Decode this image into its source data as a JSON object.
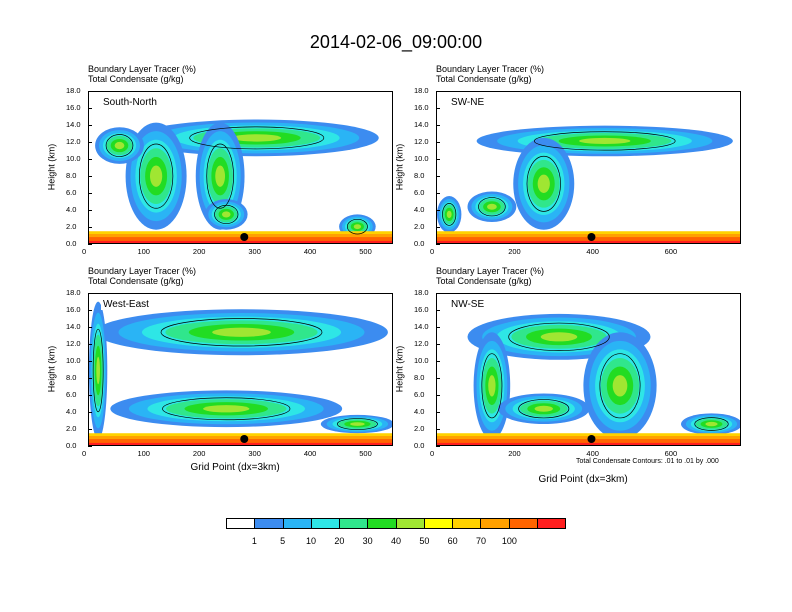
{
  "title": "2014-02-06_09:00:00",
  "chart_data": [
    {
      "type": "heatmap",
      "panel_label": "South-North",
      "title_lines": [
        "Boundary Layer Tracer   (%)",
        "Total Condensate   (g/kg)"
      ],
      "ylabel": "Height (km)",
      "xlabel": "",
      "xlim": [
        0,
        550
      ],
      "ylim": [
        0,
        18
      ],
      "xticks": [
        "0",
        "100",
        "200",
        "300",
        "400",
        "500"
      ],
      "yticks": [
        "0.0",
        "2.0",
        "4.0",
        "6.0",
        "8.0",
        "10.0",
        "12.0",
        "14.0",
        "16.0",
        "18.0"
      ],
      "marker_x": 280
    },
    {
      "type": "heatmap",
      "panel_label": "SW-NE",
      "title_lines": [
        "Boundary Layer Tracer   (%)",
        "Total Condensate   (g/kg)"
      ],
      "ylabel": "Height (km)",
      "xlabel": "",
      "xlim": [
        0,
        780
      ],
      "ylim": [
        0,
        18
      ],
      "xticks": [
        "0",
        "200",
        "400",
        "600"
      ],
      "yticks": [
        "0.0",
        "2.0",
        "4.0",
        "6.0",
        "8.0",
        "10.0",
        "12.0",
        "14.0",
        "16.0",
        "18.0"
      ],
      "marker_x": 395
    },
    {
      "type": "heatmap",
      "panel_label": "West-East",
      "title_lines": [
        "Boundary Layer Tracer   (%)",
        "Total Condensate   (g/kg)"
      ],
      "ylabel": "Height (km)",
      "xlabel": "Grid Point (dx=3km)",
      "xlim": [
        0,
        550
      ],
      "ylim": [
        0,
        18
      ],
      "xticks": [
        "0",
        "100",
        "200",
        "300",
        "400",
        "500"
      ],
      "yticks": [
        "0.0",
        "2.0",
        "4.0",
        "6.0",
        "8.0",
        "10.0",
        "12.0",
        "14.0",
        "16.0",
        "18.0"
      ],
      "marker_x": 280
    },
    {
      "type": "heatmap",
      "panel_label": "NW-SE",
      "title_lines": [
        "Boundary Layer Tracer   (%)",
        "Total Condensate   (g/kg)"
      ],
      "ylabel": "Height (km)",
      "xlabel": "Grid Point (dx=3km)",
      "xlim": [
        0,
        780
      ],
      "ylim": [
        0,
        18
      ],
      "xticks": [
        "0",
        "200",
        "400",
        "600"
      ],
      "yticks": [
        "0.0",
        "2.0",
        "4.0",
        "6.0",
        "8.0",
        "10.0",
        "12.0",
        "14.0",
        "16.0",
        "18.0"
      ],
      "marker_x": 395,
      "note": "Total Condensate Contours: .01 to .01 by .000"
    }
  ],
  "colorbar": {
    "colors": [
      "#ffffff",
      "#3c8cf0",
      "#2ab4f5",
      "#2ee6e6",
      "#30e68c",
      "#22dc22",
      "#a0e632",
      "#ffff00",
      "#ffd200",
      "#ffa000",
      "#ff6400",
      "#ff1e1e"
    ],
    "labels": [
      "1",
      "5",
      "10",
      "20",
      "30",
      "40",
      "50",
      "60",
      "70",
      "100"
    ]
  }
}
